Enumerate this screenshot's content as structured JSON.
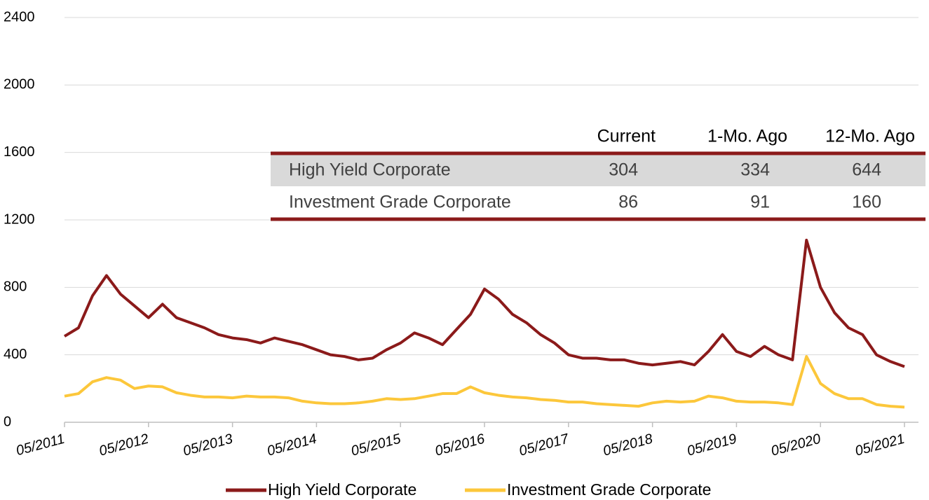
{
  "chart_data": {
    "type": "line",
    "x": [
      "2011-05",
      "2011-07",
      "2011-09",
      "2011-11",
      "2012-01",
      "2012-03",
      "2012-05",
      "2012-07",
      "2012-09",
      "2012-11",
      "2013-01",
      "2013-03",
      "2013-05",
      "2013-07",
      "2013-09",
      "2013-11",
      "2014-01",
      "2014-03",
      "2014-05",
      "2014-07",
      "2014-09",
      "2014-11",
      "2015-01",
      "2015-03",
      "2015-05",
      "2015-07",
      "2015-09",
      "2015-11",
      "2016-01",
      "2016-03",
      "2016-05",
      "2016-07",
      "2016-09",
      "2016-11",
      "2017-01",
      "2017-03",
      "2017-05",
      "2017-07",
      "2017-09",
      "2017-11",
      "2018-01",
      "2018-03",
      "2018-05",
      "2018-07",
      "2018-09",
      "2018-11",
      "2019-01",
      "2019-03",
      "2019-05",
      "2019-07",
      "2019-09",
      "2019-11",
      "2020-01",
      "2020-03",
      "2020-05",
      "2020-07",
      "2020-09",
      "2020-11",
      "2021-01",
      "2021-03",
      "2021-05"
    ],
    "series": [
      {
        "name": "High Yield Corporate",
        "color": "#8b1a1a",
        "values": [
          510,
          560,
          750,
          870,
          760,
          690,
          620,
          700,
          620,
          590,
          560,
          520,
          500,
          490,
          470,
          500,
          480,
          460,
          430,
          400,
          390,
          370,
          380,
          430,
          470,
          530,
          500,
          460,
          550,
          640,
          790,
          730,
          640,
          590,
          520,
          470,
          400,
          380,
          380,
          370,
          370,
          350,
          340,
          350,
          360,
          340,
          420,
          520,
          420,
          390,
          450,
          400,
          370,
          1080,
          800,
          650,
          560,
          520,
          400,
          360,
          330
        ]
      },
      {
        "name": "Investment Grade Corporate",
        "color": "#fcc73b",
        "values": [
          155,
          170,
          240,
          265,
          250,
          200,
          215,
          210,
          175,
          160,
          150,
          150,
          145,
          155,
          150,
          150,
          145,
          125,
          115,
          110,
          110,
          115,
          125,
          140,
          135,
          140,
          155,
          170,
          170,
          210,
          175,
          160,
          150,
          145,
          135,
          130,
          120,
          120,
          110,
          105,
          100,
          95,
          115,
          125,
          120,
          125,
          155,
          145,
          125,
          120,
          120,
          115,
          105,
          390,
          230,
          170,
          140,
          140,
          105,
          95,
          90
        ]
      }
    ],
    "xlim": [
      "2011-05",
      "2021-07"
    ],
    "xticks": [
      {
        "value": "2011-05",
        "label": "05/2011"
      },
      {
        "value": "2012-05",
        "label": "05/2012"
      },
      {
        "value": "2013-05",
        "label": "05/2013"
      },
      {
        "value": "2014-05",
        "label": "05/2014"
      },
      {
        "value": "2015-05",
        "label": "05/2015"
      },
      {
        "value": "2016-05",
        "label": "05/2016"
      },
      {
        "value": "2017-05",
        "label": "05/2017"
      },
      {
        "value": "2018-05",
        "label": "05/2018"
      },
      {
        "value": "2019-05",
        "label": "05/2019"
      },
      {
        "value": "2020-05",
        "label": "05/2020"
      },
      {
        "value": "2021-05",
        "label": "05/2021"
      }
    ],
    "ylim": [
      0,
      2400
    ],
    "yticks": [
      0,
      400,
      800,
      1200,
      1600,
      2000,
      2400
    ],
    "grid": true,
    "legend": "bottom"
  },
  "table": {
    "columns": [
      "Current",
      "1-Mo. Ago",
      "12-Mo. Ago"
    ],
    "rows": [
      [
        "High Yield Corporate",
        304,
        334,
        644
      ],
      [
        "Investment Grade Corporate",
        86,
        91,
        160
      ]
    ]
  }
}
